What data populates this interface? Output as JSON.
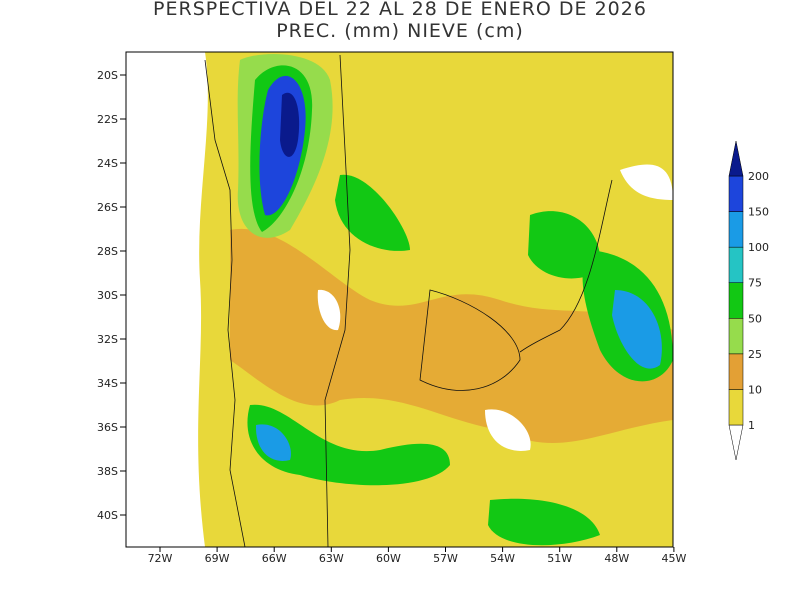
{
  "header": {
    "title": "PERSPECTIVA DEL 22 AL 28 DE ENERO DE 2026",
    "subtitle": "PREC. (mm) NIEVE (cm)"
  },
  "map": {
    "lat_labels": [
      "20S",
      "22S",
      "24S",
      "26S",
      "28S",
      "30S",
      "32S",
      "34S",
      "36S",
      "38S",
      "40S"
    ],
    "lon_labels": [
      "72W",
      "69W",
      "66W",
      "63W",
      "60W",
      "57W",
      "54W",
      "51W",
      "48W",
      "45W"
    ]
  },
  "legend": {
    "levels": [
      1,
      10,
      25,
      50,
      75,
      100,
      150,
      200
    ],
    "colors": [
      "#ffffff",
      "#e8d83a",
      "#e3a035",
      "#96dc4c",
      "#12c814",
      "#25c4c4",
      "#1a9be6",
      "#1d45dc",
      "#0a1a8c"
    ]
  }
}
